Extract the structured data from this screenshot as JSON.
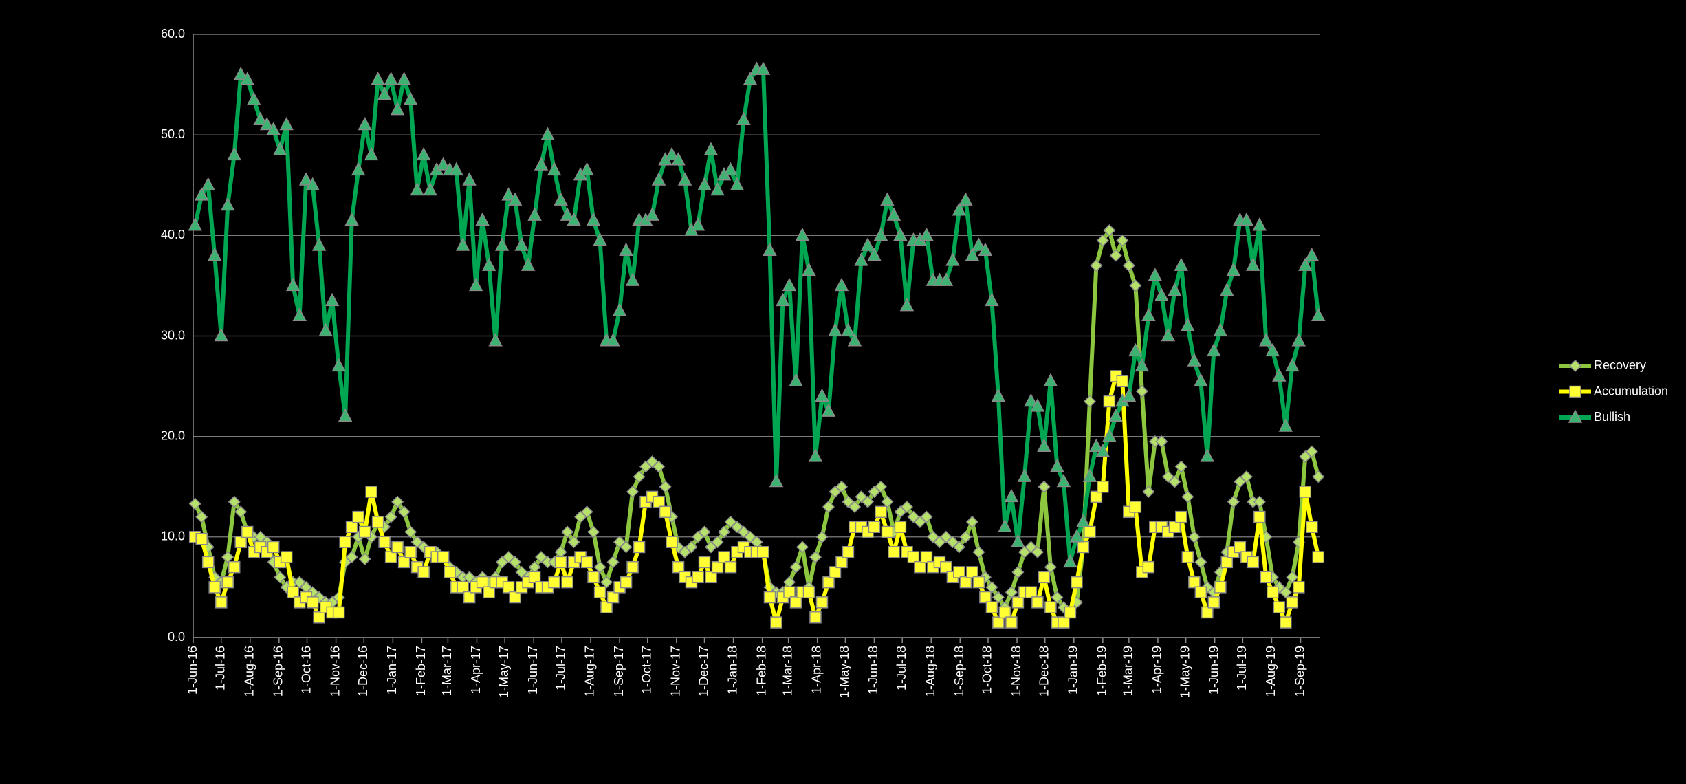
{
  "chart_data": {
    "type": "line",
    "x": [
      "2016-06-03",
      "2016-06-10",
      "2016-06-17",
      "2016-06-24",
      "2016-07-01",
      "2016-07-08",
      "2016-07-15",
      "2016-07-22",
      "2016-07-29",
      "2016-08-05",
      "2016-08-12",
      "2016-08-19",
      "2016-08-26",
      "2016-09-02",
      "2016-09-09",
      "2016-09-16",
      "2016-09-23",
      "2016-09-30",
      "2016-10-07",
      "2016-10-14",
      "2016-10-21",
      "2016-10-28",
      "2016-11-04",
      "2016-11-11",
      "2016-11-18",
      "2016-11-25",
      "2016-12-02",
      "2016-12-09",
      "2016-12-16",
      "2016-12-23",
      "2016-12-30",
      "2017-01-06",
      "2017-01-13",
      "2017-01-20",
      "2017-01-27",
      "2017-02-03",
      "2017-02-10",
      "2017-02-17",
      "2017-02-24",
      "2017-03-03",
      "2017-03-10",
      "2017-03-17",
      "2017-03-24",
      "2017-03-31",
      "2017-04-07",
      "2017-04-14",
      "2017-04-21",
      "2017-04-28",
      "2017-05-05",
      "2017-05-12",
      "2017-05-19",
      "2017-05-26",
      "2017-06-02",
      "2017-06-09",
      "2017-06-16",
      "2017-06-23",
      "2017-06-30",
      "2017-07-07",
      "2017-07-14",
      "2017-07-21",
      "2017-07-28",
      "2017-08-04",
      "2017-08-11",
      "2017-08-18",
      "2017-08-25",
      "2017-09-01",
      "2017-09-08",
      "2017-09-15",
      "2017-09-22",
      "2017-09-29",
      "2017-10-06",
      "2017-10-13",
      "2017-10-20",
      "2017-10-27",
      "2017-11-03",
      "2017-11-10",
      "2017-11-17",
      "2017-11-24",
      "2017-12-01",
      "2017-12-08",
      "2017-12-15",
      "2017-12-22",
      "2017-12-29",
      "2018-01-05",
      "2018-01-12",
      "2018-01-19",
      "2018-01-26",
      "2018-02-02",
      "2018-02-09",
      "2018-02-16",
      "2018-02-23",
      "2018-03-02",
      "2018-03-09",
      "2018-03-16",
      "2018-03-23",
      "2018-03-30",
      "2018-04-06",
      "2018-04-13",
      "2018-04-20",
      "2018-04-27",
      "2018-05-04",
      "2018-05-11",
      "2018-05-18",
      "2018-05-25",
      "2018-06-01",
      "2018-06-08",
      "2018-06-15",
      "2018-06-22",
      "2018-06-29",
      "2018-07-06",
      "2018-07-13",
      "2018-07-20",
      "2018-07-27",
      "2018-08-03",
      "2018-08-10",
      "2018-08-17",
      "2018-08-24",
      "2018-08-31",
      "2018-09-07",
      "2018-09-14",
      "2018-09-21",
      "2018-09-28",
      "2018-10-05",
      "2018-10-12",
      "2018-10-19",
      "2018-10-26",
      "2018-11-02",
      "2018-11-09",
      "2018-11-16",
      "2018-11-23",
      "2018-11-30",
      "2018-12-07",
      "2018-12-14",
      "2018-12-21",
      "2018-12-28",
      "2019-01-04",
      "2019-01-11",
      "2019-01-18",
      "2019-01-25",
      "2019-02-01",
      "2019-02-08",
      "2019-02-15",
      "2019-02-22",
      "2019-03-01",
      "2019-03-08",
      "2019-03-15",
      "2019-03-22",
      "2019-03-29",
      "2019-04-05",
      "2019-04-12",
      "2019-04-19",
      "2019-04-26",
      "2019-05-03",
      "2019-05-10",
      "2019-05-17",
      "2019-05-24",
      "2019-05-31",
      "2019-06-07",
      "2019-06-14",
      "2019-06-21",
      "2019-06-28",
      "2019-07-05",
      "2019-07-12",
      "2019-07-19",
      "2019-07-26",
      "2019-08-02",
      "2019-08-09",
      "2019-08-16",
      "2019-08-23",
      "2019-08-30",
      "2019-09-06",
      "2019-09-13",
      "2019-09-20"
    ],
    "series": [
      {
        "name": "Recovery",
        "color": "#8dc63f",
        "marker": "diamond",
        "marker_color": "#b5e06a",
        "values": [
          13.3,
          12,
          9,
          6,
          5.5,
          8,
          13.5,
          12.5,
          10.5,
          10,
          10,
          9.5,
          7.5,
          6,
          5,
          5.5,
          5.5,
          5,
          4.5,
          4,
          3.5,
          3.5,
          4,
          7.5,
          8,
          10,
          7.8,
          10,
          11.5,
          11,
          12,
          13.5,
          12.5,
          10.5,
          9.5,
          9,
          8.5,
          8.5,
          8,
          7,
          6.5,
          6,
          6,
          5.5,
          6,
          5.5,
          6,
          7.5,
          8,
          7.5,
          6.5,
          6,
          7,
          8,
          7.5,
          7.5,
          8.5,
          10.5,
          9.5,
          12,
          12.5,
          10.5,
          7,
          5.5,
          7.5,
          9.5,
          9,
          14.5,
          16,
          17,
          17.5,
          17,
          15,
          12,
          9,
          8.5,
          9,
          10,
          10.5,
          9,
          9.5,
          10.5,
          11.5,
          11,
          10.5,
          10,
          9.5,
          8.5,
          5,
          4.5,
          4.5,
          5.5,
          7,
          9,
          5,
          8,
          10,
          13,
          14.5,
          15,
          13.5,
          13,
          14,
          13.5,
          14.5,
          15,
          13.5,
          10.5,
          12.5,
          13,
          12,
          11.5,
          12,
          10,
          9.5,
          10,
          9.5,
          9,
          10,
          11.5,
          8.5,
          6,
          5,
          4,
          3,
          4.5,
          6.5,
          8.5,
          9,
          8.5,
          15,
          7,
          4,
          3,
          2.5,
          3.5,
          9,
          23.5,
          37,
          39.5,
          40.5,
          38,
          39.5,
          37,
          35,
          24.5,
          14.5,
          19.5,
          19.5,
          16,
          15.5,
          17,
          14,
          10,
          7.5,
          5,
          4.5,
          6.5,
          8.5,
          13.5,
          15.5,
          16,
          13.5,
          13.5,
          10,
          6,
          5,
          4.5,
          6,
          9.5,
          18,
          18.5,
          16
        ]
      },
      {
        "name": "Accumulation",
        "color": "#ffff00",
        "marker": "square",
        "marker_color": "#ffff33",
        "values": [
          10,
          9.8,
          7.5,
          5,
          3.5,
          5.5,
          7,
          9.5,
          10.5,
          8.5,
          9,
          8.5,
          9,
          7.5,
          8,
          4.5,
          3.5,
          4,
          3.5,
          2,
          3,
          2.5,
          2.5,
          9.5,
          11,
          12,
          10.5,
          14.5,
          11.5,
          9.5,
          8,
          9,
          7.5,
          8.5,
          7,
          6.5,
          8.5,
          8,
          8,
          6.5,
          5,
          5,
          4,
          5,
          5.5,
          4.5,
          5.5,
          5.5,
          5,
          4,
          5,
          5.5,
          6,
          5,
          5,
          5.5,
          7.5,
          5.5,
          7.5,
          8,
          7.5,
          6,
          4.5,
          3,
          4,
          5,
          5.5,
          7,
          9,
          13.5,
          14,
          13.5,
          12.5,
          9.5,
          7,
          6,
          5.5,
          6,
          7.5,
          6,
          7,
          8,
          7,
          8.5,
          9,
          8.5,
          8.5,
          8.5,
          4,
          1.5,
          4,
          4.5,
          3.5,
          4.5,
          4.5,
          2,
          3.5,
          5.5,
          6.5,
          7.5,
          8.5,
          11,
          11,
          10.5,
          11,
          12.5,
          10.5,
          8.5,
          11,
          8.5,
          8,
          7,
          8,
          7,
          7.5,
          7,
          6,
          6.5,
          5.5,
          6.5,
          5.5,
          4,
          3,
          1.5,
          2.5,
          1.5,
          3.5,
          4.5,
          4.5,
          3.5,
          6,
          3,
          1.5,
          1.5,
          2.5,
          5.5,
          9,
          10.5,
          14,
          15,
          23.5,
          26,
          25.5,
          12.5,
          13,
          6.5,
          7,
          11,
          11,
          10.5,
          11,
          12,
          8,
          5.5,
          4.5,
          2.5,
          3.5,
          5,
          7.5,
          8.5,
          9,
          8,
          7.5,
          12,
          6,
          4.5,
          3,
          1.5,
          3.5,
          5,
          14.5,
          11,
          8
        ]
      },
      {
        "name": "Bullish",
        "color": "#00a651",
        "marker": "triangle",
        "marker_color": "#3cb371",
        "values": [
          41,
          44,
          45,
          38,
          30,
          43,
          48,
          56,
          55.5,
          53.5,
          51.5,
          51,
          50.5,
          48.5,
          51,
          35,
          32,
          45.5,
          45,
          39,
          30.5,
          33.5,
          27,
          22,
          41.5,
          46.5,
          51,
          48,
          55.5,
          54,
          55.5,
          52.5,
          55.5,
          53.5,
          44.5,
          48,
          44.5,
          46.5,
          47,
          46.5,
          46.5,
          39,
          45.5,
          35,
          41.5,
          37,
          29.5,
          39,
          44,
          43.5,
          39,
          37,
          42,
          47,
          50,
          46.5,
          43.5,
          42,
          41.5,
          46,
          46.5,
          41.5,
          39.5,
          29.5,
          29.5,
          32.5,
          38.5,
          35.5,
          41.5,
          41.5,
          42,
          45.5,
          47.5,
          48,
          47.5,
          45.5,
          40.5,
          41,
          45,
          48.5,
          44.5,
          46,
          46.5,
          45,
          51.5,
          55.5,
          56.5,
          56.5,
          38.5,
          15.5,
          33.5,
          35,
          25.5,
          40,
          36.5,
          18,
          24,
          22.5,
          30.5,
          35,
          30.5,
          29.5,
          37.5,
          39,
          38,
          40,
          43.5,
          42,
          40,
          33,
          39.5,
          39.5,
          40,
          35.5,
          35.5,
          35.5,
          37.5,
          42.5,
          43.5,
          38,
          39,
          38.5,
          33.5,
          24,
          11,
          14,
          9.5,
          16,
          23.5,
          23,
          19,
          25.5,
          17,
          15.5,
          7.5,
          10,
          11.5,
          16,
          19,
          18.5,
          20,
          22,
          23.5,
          24,
          28.5,
          27,
          32,
          36,
          34,
          30,
          34.5,
          37,
          31,
          27.5,
          25.5,
          18,
          28.5,
          30.5,
          34.5,
          36.5,
          41.5,
          41.5,
          37,
          41,
          29.5,
          28.5,
          26,
          21,
          27,
          29.5,
          37,
          38,
          32
        ]
      }
    ],
    "xlim": [
      "2016-06-01",
      "2019-09-22"
    ],
    "xticks": [
      {
        "value": "2016-06-01",
        "label": "1-Jun-16"
      },
      {
        "value": "2016-07-01",
        "label": "1-Jul-16"
      },
      {
        "value": "2016-08-01",
        "label": "1-Aug-16"
      },
      {
        "value": "2016-09-01",
        "label": "1-Sep-16"
      },
      {
        "value": "2016-10-01",
        "label": "1-Oct-16"
      },
      {
        "value": "2016-11-01",
        "label": "1-Nov-16"
      },
      {
        "value": "2016-12-01",
        "label": "1-Dec-16"
      },
      {
        "value": "2017-01-01",
        "label": "1-Jan-17"
      },
      {
        "value": "2017-02-01",
        "label": "1-Feb-17"
      },
      {
        "value": "2017-03-01",
        "label": "1-Mar-17"
      },
      {
        "value": "2017-04-01",
        "label": "1-Apr-17"
      },
      {
        "value": "2017-05-01",
        "label": "1-May-17"
      },
      {
        "value": "2017-06-01",
        "label": "1-Jun-17"
      },
      {
        "value": "2017-07-01",
        "label": "1-Jul-17"
      },
      {
        "value": "2017-08-01",
        "label": "1-Aug-17"
      },
      {
        "value": "2017-09-01",
        "label": "1-Sep-17"
      },
      {
        "value": "2017-10-01",
        "label": "1-Oct-17"
      },
      {
        "value": "2017-11-01",
        "label": "1-Nov-17"
      },
      {
        "value": "2017-12-01",
        "label": "1-Dec-17"
      },
      {
        "value": "2018-01-01",
        "label": "1-Jan-18"
      },
      {
        "value": "2018-02-01",
        "label": "1-Feb-18"
      },
      {
        "value": "2018-03-01",
        "label": "1-Mar-18"
      },
      {
        "value": "2018-04-01",
        "label": "1-Apr-18"
      },
      {
        "value": "2018-05-01",
        "label": "1-May-18"
      },
      {
        "value": "2018-06-01",
        "label": "1-Jun-18"
      },
      {
        "value": "2018-07-01",
        "label": "1-Jul-18"
      },
      {
        "value": "2018-08-01",
        "label": "1-Aug-18"
      },
      {
        "value": "2018-09-01",
        "label": "1-Sep-18"
      },
      {
        "value": "2018-10-01",
        "label": "1-Oct-18"
      },
      {
        "value": "2018-11-01",
        "label": "1-Nov-18"
      },
      {
        "value": "2018-12-01",
        "label": "1-Dec-18"
      },
      {
        "value": "2019-01-01",
        "label": "1-Jan-19"
      },
      {
        "value": "2019-02-01",
        "label": "1-Feb-19"
      },
      {
        "value": "2019-03-01",
        "label": "1-Mar-19"
      },
      {
        "value": "2019-04-01",
        "label": "1-Apr-19"
      },
      {
        "value": "2019-05-01",
        "label": "1-May-19"
      },
      {
        "value": "2019-06-01",
        "label": "1-Jun-19"
      },
      {
        "value": "2019-07-01",
        "label": "1-Jul-19"
      },
      {
        "value": "2019-08-01",
        "label": "1-Aug-19"
      },
      {
        "value": "2019-09-01",
        "label": "1-Sep-19"
      }
    ],
    "ylim": [
      0,
      60
    ],
    "yticks": [
      {
        "value": 0,
        "label": "0.0"
      },
      {
        "value": 10,
        "label": "10.0"
      },
      {
        "value": 20,
        "label": "20.0"
      },
      {
        "value": 30,
        "label": "30.0"
      },
      {
        "value": 40,
        "label": "40.0"
      },
      {
        "value": 50,
        "label": "50.0"
      },
      {
        "value": 60,
        "label": "60.0"
      }
    ],
    "grid": true,
    "legend": "right"
  }
}
